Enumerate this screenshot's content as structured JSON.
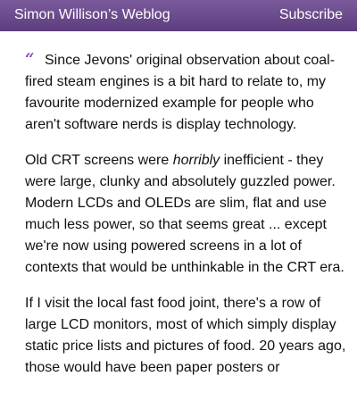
{
  "header": {
    "site_title": "Simon Willison’s Weblog",
    "subscribe_label": "Subscribe",
    "background_color": "#6a4a8c"
  },
  "quote": {
    "quote_mark": "“",
    "accent_color": "#8a4fbf",
    "paragraphs": [
      {
        "text": "Since Jevons' original observation about coal-fired steam engines is a bit hard to relate to, my favourite modernized example for people who aren't software nerds is display technology."
      },
      {
        "before": "Old CRT screens were ",
        "emphasis": "horribly",
        "after": " inefficient - they were large, clunky and absolutely guzzled power. Modern LCDs and OLEDs are slim, flat and use much less power, so that seems great ... except we're now using powered screens in a lot of contexts that would be unthinkable in the CRT era."
      },
      {
        "text": "If I visit the local fast food joint, there's a row of large LCD monitors, most of which simply display static price lists and pictures of food. 20 years ago, those would have been paper posters or"
      }
    ]
  }
}
